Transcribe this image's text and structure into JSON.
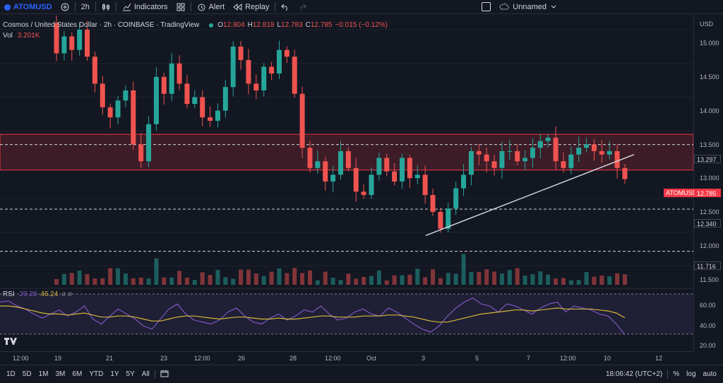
{
  "toolbar": {
    "symbol": "ATOMUSD",
    "interval": "2h",
    "indicators": "Indicators",
    "alert": "Alert",
    "replay": "Replay",
    "layout_name": "Unnamed"
  },
  "legend": {
    "title": "Cosmos / United States Dollar · 2h · COINBASE · TradingView",
    "open_label": "O",
    "open": "12.804",
    "high_label": "H",
    "high": "12.818",
    "low_label": "L",
    "low": "12.783",
    "close_label": "C",
    "close": "12.785",
    "change": "−0.015 (−0.12%)",
    "vol_label": "Vol",
    "vol": "3.201K"
  },
  "rsi": {
    "label": "RSI",
    "value1": "29.20",
    "value2": "46.24",
    "extra": "ø ø"
  },
  "price_axis": {
    "currency": "USD",
    "ticks": [
      "15.000",
      "14.500",
      "14.000",
      "13.500",
      "13.000",
      "12.500",
      "12.000",
      "11.500"
    ],
    "rsi_ticks": [
      "60.00",
      "40.00",
      "20.00"
    ],
    "tags": {
      "level_upper": "13.297",
      "current_label": "ATOMUSD",
      "current": "12.785",
      "level_mid": "12.340",
      "level_low": "11.716"
    }
  },
  "time_axis": [
    "12:00",
    "19",
    "21",
    "23",
    "12:00",
    "26",
    "28",
    "12:00",
    "Oct",
    "3",
    "5",
    "7",
    "12:00",
    "10",
    "12"
  ],
  "bottom_bar": {
    "ranges": [
      "1D",
      "5D",
      "1M",
      "3M",
      "6M",
      "YTD",
      "1Y",
      "5Y",
      "All"
    ],
    "clock": "18:06:42 (UTC+2)",
    "percent": "%",
    "log": "log",
    "auto": "auto"
  },
  "colors": {
    "up": "#26a69a",
    "down": "#ef5350",
    "zone": "#f23645",
    "rsi": "#7e57c2",
    "rsi_ma": "#d4b73a"
  },
  "chart_data": {
    "type": "candlestick",
    "series_close": [
      14.65,
      14.9,
      14.7,
      15.0,
      14.6,
      14.2,
      13.85,
      13.7,
      13.95,
      14.1,
      13.3,
      13.05,
      13.6,
      14.3,
      14.05,
      14.5,
      14.2,
      13.9,
      14.0,
      13.7,
      13.65,
      13.8,
      14.15,
      14.75,
      14.55,
      14.2,
      14.1,
      14.45,
      14.35,
      14.7,
      14.6,
      14.05,
      13.25,
      12.95,
      13.05,
      12.75,
      12.85,
      13.2,
      12.95,
      12.6,
      12.55,
      12.85,
      13.1,
      12.9,
      12.75,
      13.1,
      12.8,
      12.85,
      12.55,
      12.3,
      12.05,
      12.35,
      12.65,
      12.85,
      13.2,
      13.15,
      13.05,
      12.95,
      13.2,
      13.2,
      13.05,
      13.1,
      13.25,
      13.35,
      13.4,
      13.05,
      12.95,
      13.15,
      13.25,
      13.3,
      13.2,
      13.15,
      13.2,
      12.95,
      12.785
    ],
    "levels": [
      13.297,
      12.34,
      11.716
    ],
    "zone": [
      12.92,
      13.45
    ],
    "trendline_start": 11.95,
    "trendline_end": 13.15,
    "ylim": [
      11.4,
      15.3
    ],
    "rsi_ylim": [
      20,
      70
    ],
    "rsi_values": [
      62,
      63,
      58,
      55,
      50,
      46,
      50,
      54,
      48,
      52,
      58,
      45,
      40,
      48,
      55,
      50,
      45,
      38,
      35,
      45,
      55,
      60,
      50,
      44,
      42,
      40,
      44,
      52,
      56,
      48,
      42,
      40,
      46,
      50,
      44,
      48,
      54,
      52,
      58,
      50,
      44,
      46,
      52,
      55,
      50,
      48,
      56,
      52,
      46,
      40,
      35,
      32,
      38,
      48,
      56,
      62,
      66,
      60,
      58,
      52,
      60,
      58,
      54,
      50,
      56,
      60,
      62,
      52,
      58,
      56,
      54,
      50,
      48,
      40,
      29.2
    ],
    "rsi_ma": [
      58,
      58,
      57,
      55,
      53,
      51,
      50,
      50,
      49,
      50,
      51,
      49,
      47,
      47,
      48,
      48,
      47,
      45,
      43,
      43,
      45,
      47,
      48,
      48,
      47,
      46,
      45,
      46,
      47,
      47,
      46,
      45,
      45,
      46,
      45,
      45,
      46,
      47,
      48,
      48,
      47,
      47,
      47,
      48,
      48,
      48,
      49,
      49,
      48,
      47,
      45,
      43,
      42,
      42,
      44,
      46,
      48,
      50,
      51,
      52,
      53,
      54,
      54,
      53,
      54,
      55,
      56,
      55,
      55,
      55,
      55,
      54,
      53,
      51,
      46.24
    ]
  }
}
